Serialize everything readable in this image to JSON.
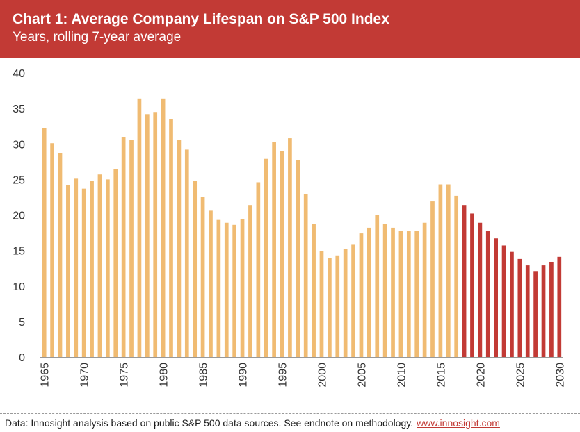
{
  "header": {
    "title": "Chart 1: Average Company Lifespan on S&P 500 Index",
    "subtitle": "Years, rolling 7-year average"
  },
  "footer": {
    "source_text": "Data: Innosight analysis based on public S&P 500 data sources. See endnote on methodology.",
    "link_text": "www.innosight.com"
  },
  "colors": {
    "header_bg": "#c23a35",
    "historical_bar": "#f0bb72",
    "forecast_bar": "#c23a35"
  },
  "chart_data": {
    "type": "bar",
    "title": "Chart 1: Average Company Lifespan on S&P 500 Index",
    "subtitle": "Years, rolling 7-year average",
    "ylim": [
      0,
      40
    ],
    "yticks": [
      0,
      5,
      10,
      15,
      20,
      25,
      30,
      35,
      40
    ],
    "xticks": [
      1965,
      1970,
      1975,
      1980,
      1985,
      1990,
      1995,
      2000,
      2005,
      2010,
      2015,
      2020,
      2025,
      2030
    ],
    "grid": false,
    "legend": "none",
    "x": [
      1965,
      1966,
      1967,
      1968,
      1969,
      1970,
      1971,
      1972,
      1973,
      1974,
      1975,
      1976,
      1977,
      1978,
      1979,
      1980,
      1981,
      1982,
      1983,
      1984,
      1985,
      1986,
      1987,
      1988,
      1989,
      1990,
      1991,
      1992,
      1993,
      1994,
      1995,
      1996,
      1997,
      1998,
      1999,
      2000,
      2001,
      2002,
      2003,
      2004,
      2005,
      2006,
      2007,
      2008,
      2009,
      2010,
      2011,
      2012,
      2013,
      2014,
      2015,
      2016,
      2017,
      2018,
      2019,
      2020,
      2021,
      2022,
      2023,
      2024,
      2025,
      2026,
      2027,
      2028,
      2029,
      2030
    ],
    "series": [
      {
        "values": [
          32.2,
          30.1,
          28.7,
          24.2,
          25.1,
          23.7,
          24.8,
          25.7,
          25.0,
          26.5,
          31.0,
          30.6,
          36.4,
          34.2,
          34.5,
          36.4,
          33.5,
          30.6,
          29.2,
          24.8,
          22.5,
          20.6,
          19.3,
          18.9,
          18.6,
          19.4,
          21.4,
          24.6,
          27.9,
          30.3,
          29.0,
          30.8,
          27.7,
          22.9,
          18.7,
          14.9,
          13.9,
          14.3,
          15.2,
          15.8,
          17.4,
          18.2,
          20.0,
          18.7,
          18.2,
          17.8,
          17.7,
          17.8,
          18.9,
          21.9,
          24.3,
          24.3,
          22.7,
          21.4,
          20.2,
          18.9,
          17.7,
          16.7,
          15.7,
          14.8,
          13.8,
          12.9,
          12.1,
          12.9,
          13.4,
          14.1
        ],
        "forecast_from": 2018
      }
    ]
  }
}
